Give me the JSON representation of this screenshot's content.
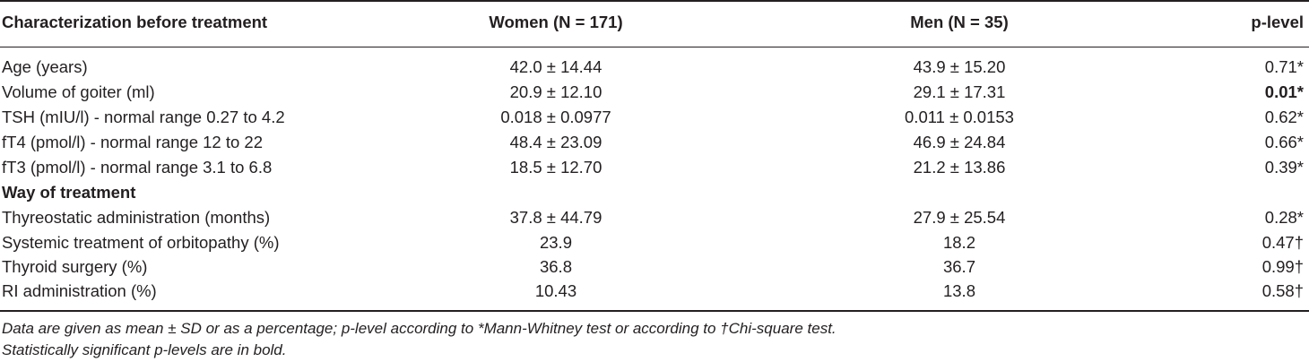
{
  "header": {
    "col0": "Characterization before treatment",
    "col1": "Women (N = 171)",
    "col2": "Men (N = 35)",
    "col3": "p-level"
  },
  "rows": [
    {
      "label": "Age (years)",
      "women": "42.0 ± 14.44",
      "men": "43.9 ± 15.20",
      "p": "0.71*",
      "p_bold": false
    },
    {
      "label": "Volume of goiter (ml)",
      "women": "20.9 ± 12.10",
      "men": "29.1 ± 17.31",
      "p": "0.01*",
      "p_bold": true
    },
    {
      "label": "TSH (mIU/l) - normal range 0.27 to 4.2",
      "women": "0.018 ± 0.0977",
      "men": "0.011 ± 0.0153",
      "p": "0.62*",
      "p_bold": false
    },
    {
      "label": "fT4 (pmol/l) - normal range 12 to 22",
      "women": "48.4 ± 23.09",
      "men": "46.9 ± 24.84",
      "p": "0.66*",
      "p_bold": false
    },
    {
      "label": "fT3 (pmol/l) - normal range 3.1 to 6.8",
      "women": "18.5 ± 12.70",
      "men": "21.2 ± 13.86",
      "p": "0.39*",
      "p_bold": false
    }
  ],
  "section2": "Way of treatment",
  "rows2": [
    {
      "label": "Thyreostatic administration (months)",
      "women": "37.8 ± 44.79",
      "men": "27.9 ± 25.54",
      "p": "0.28*"
    },
    {
      "label": "Systemic treatment of orbitopathy (%)",
      "women": "23.9",
      "men": "18.2",
      "p": "0.47†"
    },
    {
      "label": "Thyroid surgery (%)",
      "women": "36.8",
      "men": "36.7",
      "p": "0.99†"
    },
    {
      "label": "RI administration (%)",
      "women": "10.43",
      "men": "13.8",
      "p": "0.58†"
    }
  ],
  "footnotes": [
    "Data are given as mean ± SD or as a percentage; p-level according to *Mann-Whitney test or according to †Chi-square test.",
    "Statistically significant p-levels are in bold."
  ]
}
